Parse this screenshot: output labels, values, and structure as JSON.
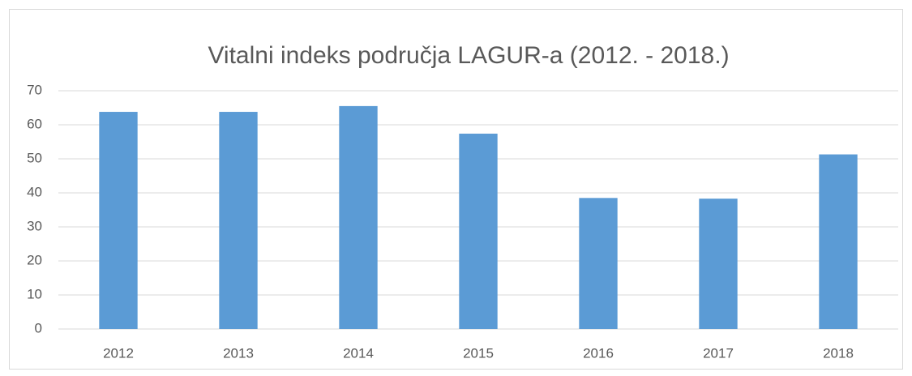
{
  "chart_data": {
    "type": "bar",
    "title": "Vitalni indeks područja LAGUR-a (2012. - 2018.)",
    "categories": [
      "2012",
      "2013",
      "2014",
      "2015",
      "2016",
      "2017",
      "2018"
    ],
    "values": [
      63.8,
      63.8,
      65.5,
      57.4,
      38.5,
      38.3,
      51.3
    ],
    "color": "#5b9bd5",
    "ylim": [
      0,
      70
    ],
    "yticks": [
      0,
      10,
      20,
      30,
      40,
      50,
      60,
      70
    ],
    "grid": true
  }
}
